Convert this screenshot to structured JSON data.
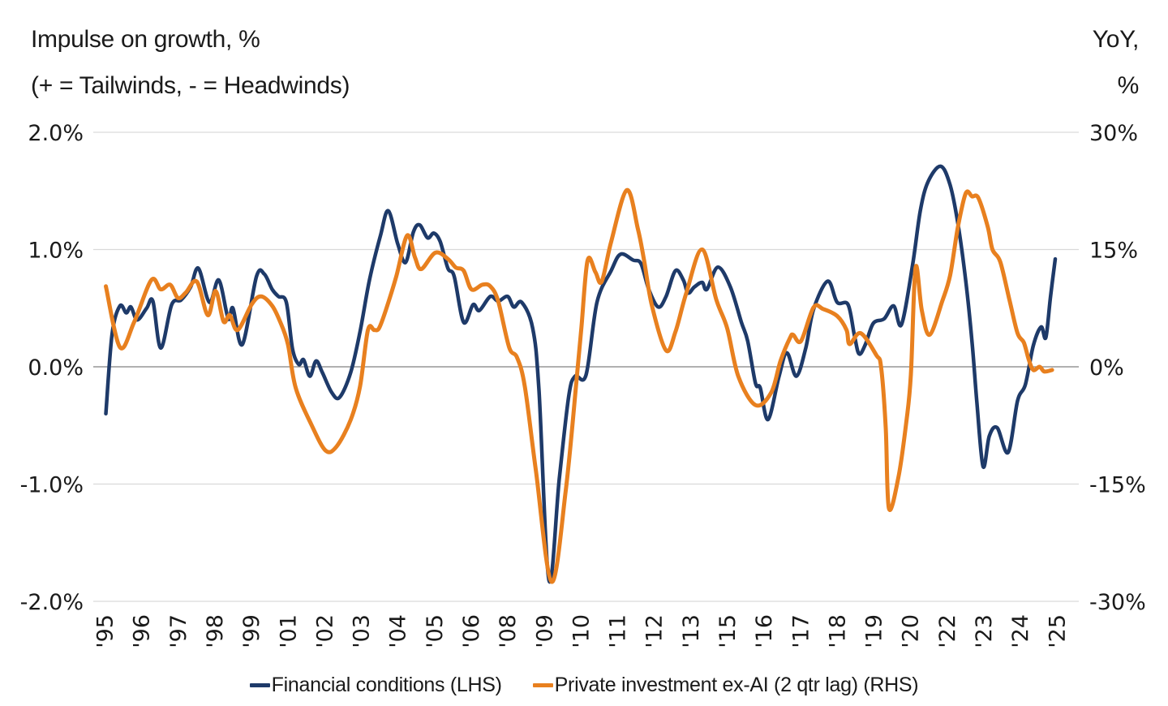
{
  "titles": {
    "left_line1": "Impulse on growth, %",
    "left_line2": "(+ = Tailwinds, - = Headwinds)",
    "right_line1": "YoY,",
    "right_line2": "%"
  },
  "colors": {
    "navy": "#1e3a69",
    "orange": "#e8801f",
    "gridline": "#d9d9d9",
    "zeroline": "#808080",
    "text": "#1a1a1a"
  },
  "chart_data": {
    "type": "line",
    "title": "Impulse on growth, % (+ = Tailwinds, - = Headwinds) vs YoY, %",
    "x_axis": {
      "tick_labels": [
        "'95",
        "'96",
        "'97",
        "'98",
        "'99",
        "'01",
        "'02",
        "'03",
        "'04",
        "'05",
        "'06",
        "'08",
        "'09",
        "'10",
        "'11",
        "'12",
        "'13",
        "'15",
        "'16",
        "'17",
        "'18",
        "'19",
        "'20",
        "'22",
        "'23",
        "'24",
        "'25"
      ],
      "first_tick_time": 1995.25,
      "tick_interval_years": 1.1667,
      "range": [
        1994.9,
        2026.3
      ],
      "grid": false
    },
    "y_axis_left": {
      "tick_labels": [
        "2.0%",
        "1.0%",
        "0.0%",
        "-1.0%",
        "-2.0%"
      ],
      "tick_values": [
        2,
        1,
        0,
        -1,
        -2
      ],
      "range": [
        -2,
        2
      ],
      "grid": true
    },
    "y_axis_right": {
      "tick_labels": [
        "30%",
        "15%",
        "0%",
        "-15%",
        "-30%"
      ],
      "tick_values": [
        30,
        15,
        0,
        -15,
        -30
      ],
      "range": [
        -30,
        30
      ]
    },
    "legend_position": "bottom-center",
    "series": [
      {
        "name": "Financial conditions (LHS)",
        "axis": "lhs",
        "color": "#1e3a69",
        "stroke_width": 4.5,
        "points": [
          [
            1995.3,
            -0.4
          ],
          [
            1995.5,
            0.28
          ],
          [
            1995.75,
            0.52
          ],
          [
            1995.95,
            0.46
          ],
          [
            1996.1,
            0.51
          ],
          [
            1996.3,
            0.4
          ],
          [
            1996.6,
            0.5
          ],
          [
            1996.8,
            0.56
          ],
          [
            1997.05,
            0.16
          ],
          [
            1997.4,
            0.53
          ],
          [
            1997.7,
            0.57
          ],
          [
            1998.0,
            0.68
          ],
          [
            1998.25,
            0.84
          ],
          [
            1998.6,
            0.55
          ],
          [
            1998.9,
            0.74
          ],
          [
            1999.2,
            0.41
          ],
          [
            1999.35,
            0.5
          ],
          [
            1999.65,
            0.19
          ],
          [
            2000.1,
            0.77
          ],
          [
            2000.35,
            0.79
          ],
          [
            2000.6,
            0.66
          ],
          [
            2000.8,
            0.6
          ],
          [
            2001.05,
            0.55
          ],
          [
            2001.25,
            0.15
          ],
          [
            2001.45,
            0.02
          ],
          [
            2001.6,
            0.06
          ],
          [
            2001.8,
            -0.08
          ],
          [
            2002.0,
            0.05
          ],
          [
            2002.2,
            -0.05
          ],
          [
            2002.5,
            -0.22
          ],
          [
            2002.75,
            -0.26
          ],
          [
            2003.1,
            -0.05
          ],
          [
            2003.4,
            0.3
          ],
          [
            2003.7,
            0.74
          ],
          [
            2004.05,
            1.12
          ],
          [
            2004.3,
            1.33
          ],
          [
            2004.6,
            1.05
          ],
          [
            2004.85,
            0.89
          ],
          [
            2005.1,
            1.15
          ],
          [
            2005.3,
            1.21
          ],
          [
            2005.55,
            1.1
          ],
          [
            2005.75,
            1.14
          ],
          [
            2005.95,
            1.07
          ],
          [
            2006.2,
            0.84
          ],
          [
            2006.4,
            0.77
          ],
          [
            2006.7,
            0.38
          ],
          [
            2007.0,
            0.53
          ],
          [
            2007.2,
            0.48
          ],
          [
            2007.55,
            0.6
          ],
          [
            2007.8,
            0.56
          ],
          [
            2008.1,
            0.6
          ],
          [
            2008.3,
            0.51
          ],
          [
            2008.55,
            0.55
          ],
          [
            2008.9,
            0.33
          ],
          [
            2009.1,
            -0.2
          ],
          [
            2009.42,
            -1.82
          ],
          [
            2009.75,
            -0.95
          ],
          [
            2010.05,
            -0.25
          ],
          [
            2010.25,
            -0.08
          ],
          [
            2010.6,
            -0.07
          ],
          [
            2010.95,
            0.55
          ],
          [
            2011.4,
            0.82
          ],
          [
            2011.7,
            0.96
          ],
          [
            2012.1,
            0.91
          ],
          [
            2012.35,
            0.88
          ],
          [
            2012.6,
            0.66
          ],
          [
            2012.9,
            0.51
          ],
          [
            2013.15,
            0.6
          ],
          [
            2013.45,
            0.82
          ],
          [
            2013.7,
            0.74
          ],
          [
            2013.85,
            0.63
          ],
          [
            2014.05,
            0.68
          ],
          [
            2014.3,
            0.72
          ],
          [
            2014.45,
            0.66
          ],
          [
            2014.8,
            0.85
          ],
          [
            2015.2,
            0.68
          ],
          [
            2015.55,
            0.38
          ],
          [
            2015.75,
            0.22
          ],
          [
            2016.0,
            -0.14
          ],
          [
            2016.15,
            -0.18
          ],
          [
            2016.4,
            -0.45
          ],
          [
            2016.75,
            -0.08
          ],
          [
            2017.0,
            0.12
          ],
          [
            2017.3,
            -0.08
          ],
          [
            2017.6,
            0.16
          ],
          [
            2017.85,
            0.49
          ],
          [
            2018.3,
            0.73
          ],
          [
            2018.6,
            0.55
          ],
          [
            2018.95,
            0.53
          ],
          [
            2019.15,
            0.27
          ],
          [
            2019.3,
            0.11
          ],
          [
            2019.5,
            0.19
          ],
          [
            2019.75,
            0.37
          ],
          [
            2020.1,
            0.41
          ],
          [
            2020.4,
            0.52
          ],
          [
            2020.65,
            0.36
          ],
          [
            2021.0,
            0.86
          ],
          [
            2021.25,
            1.33
          ],
          [
            2021.5,
            1.58
          ],
          [
            2021.9,
            1.71
          ],
          [
            2022.2,
            1.55
          ],
          [
            2022.45,
            1.22
          ],
          [
            2022.7,
            0.73
          ],
          [
            2022.9,
            0.21
          ],
          [
            2023.05,
            -0.29
          ],
          [
            2023.25,
            -0.85
          ],
          [
            2023.45,
            -0.59
          ],
          [
            2023.7,
            -0.52
          ],
          [
            2024.05,
            -0.73
          ],
          [
            2024.35,
            -0.29
          ],
          [
            2024.6,
            -0.15
          ],
          [
            2024.85,
            0.18
          ],
          [
            2025.1,
            0.34
          ],
          [
            2025.25,
            0.25
          ],
          [
            2025.4,
            0.6
          ],
          [
            2025.55,
            0.92
          ]
        ]
      },
      {
        "name": "Private investment ex-AI (2 qtr lag) (RHS)",
        "axis": "rhs",
        "color": "#e8801f",
        "stroke_width": 5,
        "points": [
          [
            1995.3,
            10.3
          ],
          [
            1995.75,
            2.5
          ],
          [
            1996.2,
            5.7
          ],
          [
            1996.75,
            11.1
          ],
          [
            1997.05,
            9.9
          ],
          [
            1997.35,
            10.5
          ],
          [
            1997.6,
            8.8
          ],
          [
            1997.85,
            9.5
          ],
          [
            1998.2,
            10.9
          ],
          [
            1998.55,
            6.6
          ],
          [
            1998.8,
            9.7
          ],
          [
            1999.05,
            5.8
          ],
          [
            1999.25,
            6.6
          ],
          [
            1999.5,
            4.7
          ],
          [
            1999.95,
            8.0
          ],
          [
            2000.25,
            9.0
          ],
          [
            2000.6,
            7.8
          ],
          [
            2000.85,
            5.8
          ],
          [
            2001.1,
            2.9
          ],
          [
            2001.35,
            -2.7
          ],
          [
            2001.85,
            -7.4
          ],
          [
            2002.3,
            -10.7
          ],
          [
            2002.65,
            -10.2
          ],
          [
            2003.1,
            -6.8
          ],
          [
            2003.4,
            -2.5
          ],
          [
            2003.65,
            4.7
          ],
          [
            2003.85,
            4.7
          ],
          [
            2004.0,
            4.9
          ],
          [
            2004.2,
            7.0
          ],
          [
            2004.55,
            11.5
          ],
          [
            2004.9,
            16.8
          ],
          [
            2005.15,
            14.0
          ],
          [
            2005.35,
            12.5
          ],
          [
            2005.8,
            14.6
          ],
          [
            2006.2,
            13.8
          ],
          [
            2006.45,
            12.7
          ],
          [
            2006.7,
            12.3
          ],
          [
            2006.95,
            9.9
          ],
          [
            2007.3,
            10.5
          ],
          [
            2007.55,
            10.3
          ],
          [
            2007.8,
            8.4
          ],
          [
            2008.15,
            2.5
          ],
          [
            2008.4,
            1.2
          ],
          [
            2008.65,
            -2.5
          ],
          [
            2009.0,
            -13.2
          ],
          [
            2009.5,
            -27.5
          ],
          [
            2009.95,
            -16.0
          ],
          [
            2010.3,
            -1.6
          ],
          [
            2010.45,
            4.9
          ],
          [
            2010.65,
            13.6
          ],
          [
            2010.9,
            12.1
          ],
          [
            2011.1,
            10.9
          ],
          [
            2011.4,
            16.0
          ],
          [
            2011.9,
            22.6
          ],
          [
            2012.25,
            17.7
          ],
          [
            2012.45,
            13.6
          ],
          [
            2012.7,
            7.8
          ],
          [
            2013.15,
            2.1
          ],
          [
            2013.45,
            4.5
          ],
          [
            2013.8,
            9.5
          ],
          [
            2014.3,
            15.0
          ],
          [
            2014.75,
            8.6
          ],
          [
            2015.1,
            4.9
          ],
          [
            2015.45,
            -1.2
          ],
          [
            2016.0,
            -4.9
          ],
          [
            2016.5,
            -3.3
          ],
          [
            2016.8,
            0.8
          ],
          [
            2017.1,
            3.7
          ],
          [
            2017.2,
            4.1
          ],
          [
            2017.45,
            3.3
          ],
          [
            2017.85,
            7.6
          ],
          [
            2018.15,
            7.4
          ],
          [
            2018.6,
            6.5
          ],
          [
            2018.9,
            4.7
          ],
          [
            2019.0,
            2.9
          ],
          [
            2019.35,
            4.3
          ],
          [
            2019.85,
            1.5
          ],
          [
            2020.0,
            0.0
          ],
          [
            2020.15,
            -7.8
          ],
          [
            2020.25,
            -18.1
          ],
          [
            2020.55,
            -14.2
          ],
          [
            2020.8,
            -7.2
          ],
          [
            2020.95,
            -1.0
          ],
          [
            2021.1,
            12.7
          ],
          [
            2021.3,
            7.2
          ],
          [
            2021.55,
            4.1
          ],
          [
            2021.95,
            8.4
          ],
          [
            2022.2,
            11.7
          ],
          [
            2022.45,
            17.9
          ],
          [
            2022.7,
            22.2
          ],
          [
            2022.9,
            21.8
          ],
          [
            2023.1,
            21.6
          ],
          [
            2023.4,
            17.9
          ],
          [
            2023.55,
            15.0
          ],
          [
            2023.8,
            13.4
          ],
          [
            2024.1,
            8.4
          ],
          [
            2024.35,
            4.3
          ],
          [
            2024.55,
            3.1
          ],
          [
            2024.7,
            1.0
          ],
          [
            2024.85,
            -0.4
          ],
          [
            2025.05,
            0.0
          ],
          [
            2025.2,
            -0.6
          ],
          [
            2025.45,
            -0.4
          ]
        ]
      }
    ]
  }
}
